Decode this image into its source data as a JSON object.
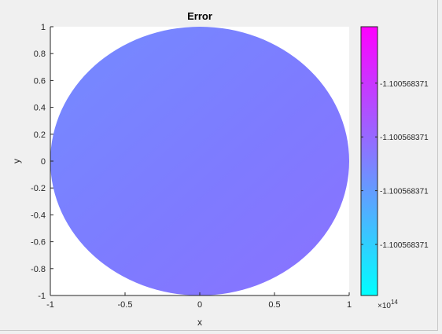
{
  "chart_data": {
    "type": "heatmap",
    "title": "Error",
    "xlabel": "x",
    "ylabel": "y",
    "xlim": [
      -1,
      1
    ],
    "ylim": [
      -1,
      1
    ],
    "x_ticks": [
      "-1",
      "-0.5",
      "0",
      "0.5",
      "1"
    ],
    "y_ticks": [
      "1",
      "0.8",
      "0.6",
      "0.4",
      "0.2",
      "0",
      "-0.2",
      "-0.4",
      "-0.6",
      "-0.8",
      "-1"
    ],
    "region": "unit disk",
    "grid": false,
    "colorbar": {
      "colormap": "cool",
      "colormap_stops": [
        "#00ffff",
        "#ff00ff"
      ],
      "tick_labels": [
        "-1.100568371",
        "-1.100568371",
        "-1.100568371",
        "-1.100568371"
      ],
      "tick_fractions": [
        0.79,
        0.59,
        0.39,
        0.19
      ],
      "exponent_base": "×10",
      "exponent": "14"
    },
    "surface_colors": [
      "#748bff",
      "#7e7bff",
      "#8a72ff"
    ]
  }
}
